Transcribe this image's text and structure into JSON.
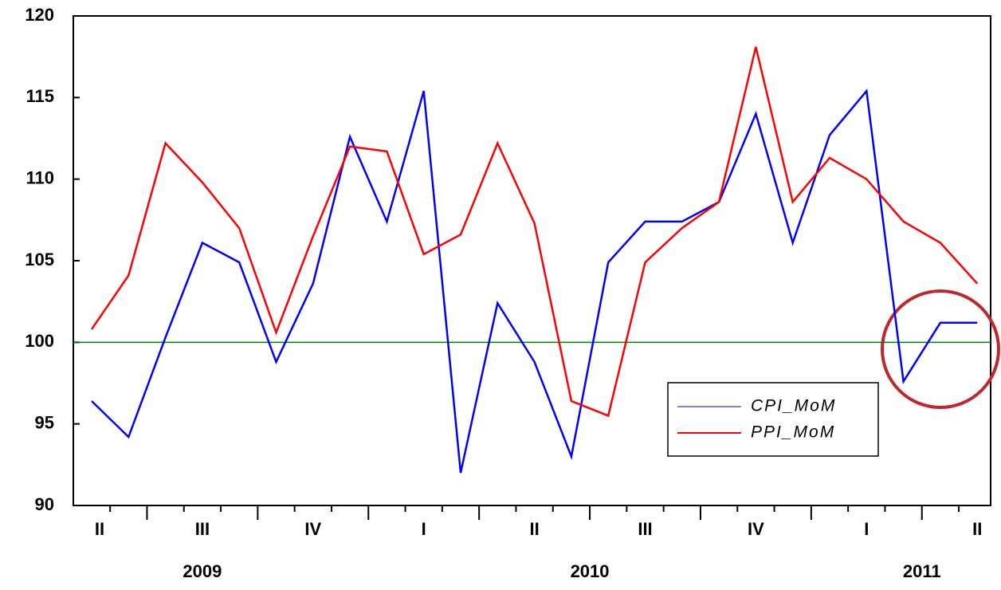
{
  "chart_data": {
    "type": "line",
    "categories": [
      "II",
      null,
      null,
      "III",
      null,
      null,
      "IV",
      null,
      null,
      "I",
      null,
      null,
      "II",
      null,
      null,
      "III",
      null,
      null,
      "IV",
      null,
      null,
      "I",
      null,
      null,
      "II"
    ],
    "years": [
      "2009",
      "2010",
      "2011"
    ],
    "series": [
      {
        "name": "CPI_MoM",
        "color": "#0000ff",
        "values": [
          96.4,
          94.2,
          100.3,
          106.1,
          104.9,
          98.8,
          103.6,
          112.6,
          107.4,
          115.4,
          92.0,
          102.4,
          98.8,
          93.0,
          104.9,
          107.4,
          107.4,
          108.6,
          114.0,
          106.1,
          112.7,
          115.4,
          97.6,
          101.2,
          101.2
        ]
      },
      {
        "name": "PPI_MoM",
        "color": "#ff0000",
        "values": [
          100.8,
          104.1,
          112.2,
          109.8,
          107.0,
          100.6,
          106.5,
          112.0,
          111.7,
          105.4,
          106.6,
          112.2,
          107.3,
          96.4,
          95.5,
          104.9,
          107.0,
          108.6,
          118.1,
          108.6,
          111.3,
          110.0,
          107.4,
          106.1,
          103.6
        ]
      }
    ],
    "reference_line": {
      "value": 100,
      "color": "#008000"
    },
    "ylim": [
      90,
      120
    ],
    "yticks": [
      90,
      95,
      100,
      105,
      110,
      115,
      120
    ],
    "grid": false
  }
}
